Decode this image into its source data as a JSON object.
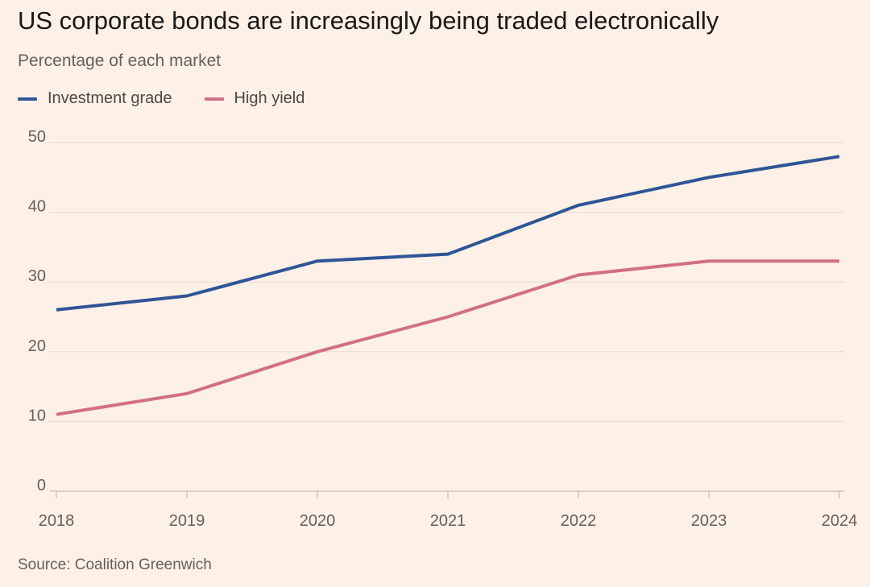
{
  "title": "US corporate bonds are increasingly being traded electronically",
  "subtitle": "Percentage of each market",
  "source": "Source: Coalition Greenwich",
  "colors": {
    "background": "#fdf0e6",
    "investment_grade": "#2e5596",
    "high_yield": "#d26f85",
    "grid": "#e6d9ce",
    "axis": "#c8bcb2"
  },
  "chart_data": {
    "type": "line",
    "title": "US corporate bonds are increasingly being traded electronically",
    "subtitle": "Percentage of each market",
    "xlabel": "",
    "ylabel": "",
    "x": [
      2018,
      2019,
      2020,
      2021,
      2022,
      2023,
      2024
    ],
    "x_tick_labels": [
      "2018",
      "2019",
      "2020",
      "2021",
      "2022",
      "2023",
      "2024"
    ],
    "y_ticks": [
      0,
      10,
      20,
      30,
      40,
      50
    ],
    "y_tick_labels": [
      "0",
      "10",
      "20",
      "30",
      "40",
      "50"
    ],
    "ylim": [
      0,
      50
    ],
    "grid": true,
    "legend_position": "top-left",
    "series": [
      {
        "name": "Investment grade",
        "color": "#2e5596",
        "values": [
          26,
          28,
          33,
          34,
          41,
          45,
          48
        ]
      },
      {
        "name": "High yield",
        "color": "#d26f85",
        "values": [
          11,
          14,
          20,
          25,
          31,
          33,
          33
        ]
      }
    ]
  }
}
